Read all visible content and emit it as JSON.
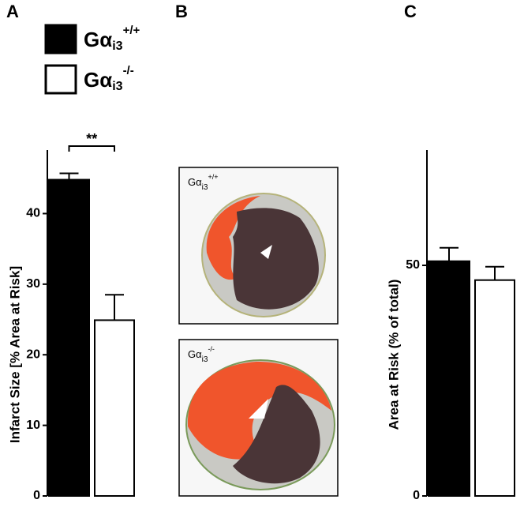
{
  "panels": [
    "A",
    "B",
    "C"
  ],
  "legend": [
    {
      "base": "Gα",
      "sub": "i3",
      "sup": "+/+",
      "color": "#000000"
    },
    {
      "base": "Gα",
      "sub": "i3",
      "sup": "-/-",
      "color": "#ffffff"
    }
  ],
  "images": [
    {
      "base": "Gα",
      "sub": "i3",
      "sup": "+/+"
    },
    {
      "base": "Gα",
      "sub": "i3",
      "sup": "-/-"
    }
  ],
  "chart_data": [
    {
      "type": "bar",
      "ylabel": "Infarct Size  [% Area at Risk]",
      "categories": [
        null,
        null
      ],
      "values": [
        44.8,
        24.9
      ],
      "errors": [
        0.9,
        3.6
      ],
      "colors": [
        "#000000",
        "#ffffff"
      ],
      "ylim": [
        0,
        49
      ],
      "yticks": [
        0,
        10,
        20,
        30,
        40
      ],
      "annotation": "**"
    },
    {
      "type": "bar",
      "ylabel": "Area at Risk (% of total)",
      "categories": [
        null,
        null
      ],
      "values": [
        50.9,
        46.8
      ],
      "errors": [
        2.9,
        2.9
      ],
      "colors": [
        "#000000",
        "#ffffff"
      ],
      "ylim": [
        0,
        75
      ],
      "yticks": [
        0,
        50
      ]
    }
  ]
}
